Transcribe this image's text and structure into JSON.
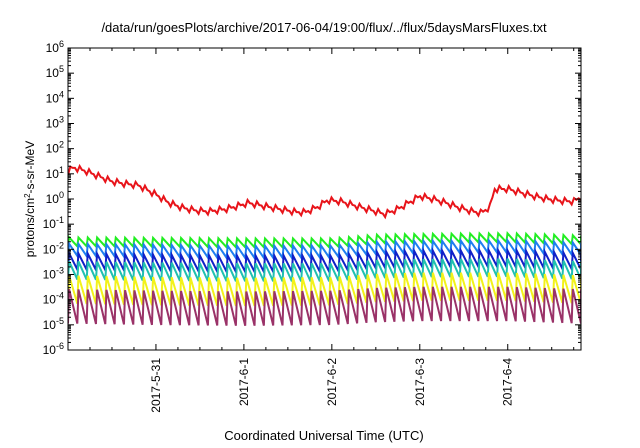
{
  "chart_data": {
    "type": "line",
    "title": "/data/run/goesPlots/archive/2017-06-04/19:00/flux/../flux/5daysMarsFluxes.txt",
    "xlabel": "Coordinated Universal Time (UTC)",
    "ylabel": {
      "base": "protons/cm",
      "sup": "2",
      "rest": "-s-sr-MeV"
    },
    "y_scale": "log",
    "ylim_exponent": [
      -6,
      6
    ],
    "y_tick_exponents": [
      -6,
      -5,
      -4,
      -3,
      -2,
      -1,
      0,
      1,
      2,
      3,
      4,
      5,
      6
    ],
    "x_range": [
      "2017-05-30 00:00",
      "2017-06-04 20:00"
    ],
    "x_ticks": [
      "2017-5-31",
      "2017-6-1",
      "2017-6-2",
      "2017-6-3",
      "2017-6-4"
    ],
    "grid": false,
    "legend": "none",
    "colors": {
      "red": "#e8141a",
      "green": "#22ee22",
      "blue_light": "#1f7ff0",
      "blue_dark": "#1020c8",
      "teal": "#20c0b0",
      "yellow": "#f2f21a",
      "purple": "#9a3268"
    },
    "series": [
      {
        "color": "#e8141a",
        "mode": "trend",
        "points": [
          [
            0.0,
            12
          ],
          [
            0.06,
            18
          ],
          [
            0.2,
            13
          ],
          [
            0.35,
            8
          ],
          [
            0.5,
            5
          ],
          [
            0.65,
            4
          ],
          [
            0.8,
            3.5
          ],
          [
            1.0,
            1.5
          ],
          [
            1.15,
            0.7
          ],
          [
            1.3,
            0.45
          ],
          [
            1.45,
            0.35
          ],
          [
            1.6,
            0.32
          ],
          [
            1.8,
            0.4
          ],
          [
            1.95,
            0.55
          ],
          [
            2.05,
            0.7
          ],
          [
            2.2,
            0.55
          ],
          [
            2.4,
            0.4
          ],
          [
            2.6,
            0.3
          ],
          [
            2.7,
            0.3
          ],
          [
            2.85,
            0.5
          ],
          [
            2.95,
            0.9
          ],
          [
            3.1,
            0.8
          ],
          [
            3.3,
            0.5
          ],
          [
            3.5,
            0.32
          ],
          [
            3.6,
            0.25
          ],
          [
            3.75,
            0.4
          ],
          [
            3.9,
            0.8
          ],
          [
            4.0,
            1.3
          ],
          [
            4.15,
            1.0
          ],
          [
            4.3,
            0.7
          ],
          [
            4.45,
            0.45
          ],
          [
            4.6,
            0.32
          ],
          [
            4.7,
            0.28
          ],
          [
            4.8,
            0.5
          ],
          [
            4.85,
            2.5
          ],
          [
            5.0,
            2.5
          ],
          [
            5.15,
            1.8
          ],
          [
            5.3,
            1.3
          ],
          [
            5.45,
            1.0
          ],
          [
            5.6,
            0.85
          ],
          [
            5.75,
            0.8
          ],
          [
            5.83,
            1.2
          ]
        ],
        "ripple": 0.25,
        "cycles": 55
      },
      {
        "color": "#22ee22",
        "mode": "sawtooth",
        "points": [
          [
            0.0,
            0.022
          ],
          [
            1.0,
            0.021
          ],
          [
            2.0,
            0.02
          ],
          [
            3.0,
            0.02
          ],
          [
            3.5,
            0.028
          ],
          [
            4.0,
            0.03
          ],
          [
            5.0,
            0.032
          ],
          [
            5.83,
            0.026
          ]
        ],
        "amplitude": 0.22,
        "cycles": 55
      },
      {
        "color": "#1f7ff0",
        "mode": "sawtooth",
        "points": [
          [
            0.0,
            0.011
          ],
          [
            1.0,
            0.01
          ],
          [
            2.0,
            0.009
          ],
          [
            3.0,
            0.0095
          ],
          [
            3.5,
            0.013
          ],
          [
            4.0,
            0.014
          ],
          [
            5.0,
            0.015
          ],
          [
            5.83,
            0.012
          ]
        ],
        "amplitude": 0.3,
        "cycles": 55
      },
      {
        "color": "#1020c8",
        "mode": "sawtooth",
        "points": [
          [
            0.0,
            0.004
          ],
          [
            1.0,
            0.0035
          ],
          [
            2.0,
            0.0032
          ],
          [
            3.0,
            0.0033
          ],
          [
            3.5,
            0.0045
          ],
          [
            4.0,
            0.005
          ],
          [
            5.0,
            0.0052
          ],
          [
            5.83,
            0.004
          ]
        ],
        "amplitude": 0.4,
        "cycles": 55
      },
      {
        "color": "#20c0b0",
        "mode": "sawtooth",
        "points": [
          [
            0.0,
            0.0018
          ],
          [
            1.0,
            0.0016
          ],
          [
            2.0,
            0.0015
          ],
          [
            3.0,
            0.0015
          ],
          [
            3.5,
            0.002
          ],
          [
            4.0,
            0.0022
          ],
          [
            5.0,
            0.0023
          ],
          [
            5.83,
            0.0018
          ]
        ],
        "amplitude": 0.45,
        "cycles": 55
      },
      {
        "color": "#f2f21a",
        "mode": "sawtooth",
        "points": [
          [
            0.0,
            0.00035
          ],
          [
            1.0,
            0.0003
          ],
          [
            2.0,
            0.00028
          ],
          [
            3.0,
            0.0003
          ],
          [
            3.5,
            0.0004
          ],
          [
            4.0,
            0.00045
          ],
          [
            5.0,
            0.00045
          ],
          [
            5.83,
            0.00035
          ]
        ],
        "amplitude": 0.7,
        "cycles": 55
      },
      {
        "color": "#9a3268",
        "mode": "sawtooth",
        "points": [
          [
            0.0,
            8e-05
          ],
          [
            1.0,
            7e-05
          ],
          [
            2.0,
            6.5e-05
          ],
          [
            3.0,
            7e-05
          ],
          [
            3.5,
            9e-05
          ],
          [
            4.0,
            0.0001
          ],
          [
            5.0,
            0.0001
          ],
          [
            5.83,
            8e-05
          ]
        ],
        "amplitude": 0.85,
        "cycles": 55
      }
    ]
  }
}
